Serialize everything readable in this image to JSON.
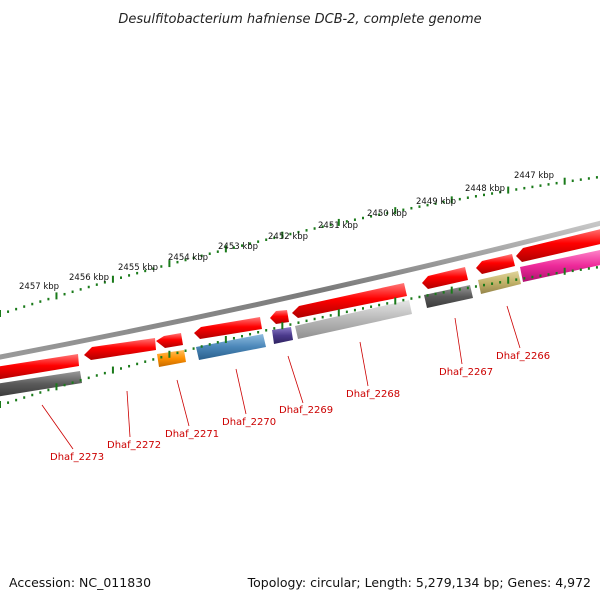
{
  "title": "Desulfitobacterium hafniense DCB-2, complete genome",
  "footer": {
    "accession": "Accession: NC_011830",
    "topology": "Topology: circular; Length: 5,279,134 bp; Genes: 4,972"
  },
  "scale_labels": [
    "2447 kbp",
    "2448 kbp",
    "2449 kbp",
    "2450 kbp",
    "2451 kbp",
    "2452 kbp",
    "2453 kbp",
    "2454 kbp",
    "2455 kbp",
    "2456 kbp",
    "2457 kbp"
  ],
  "gene_labels": [
    "Dhaf_2266",
    "Dhaf_2267",
    "Dhaf_2268",
    "Dhaf_2269",
    "Dhaf_2270",
    "Dhaf_2271",
    "Dhaf_2272",
    "Dhaf_2273"
  ],
  "colors": {
    "backbone": "#8a8a8a",
    "tick": "#1a7a1a",
    "gene_arrow": "#ee1111",
    "label": "#cc0000",
    "dark_gray": "#5a5a5a",
    "orange": "#ff9900",
    "steel_blue": "#4a86b8",
    "indigo": "#4b3a8c",
    "light_gray": "#b4b4b4",
    "khaki": "#c2b26a",
    "magenta": "#ee2a9a"
  }
}
